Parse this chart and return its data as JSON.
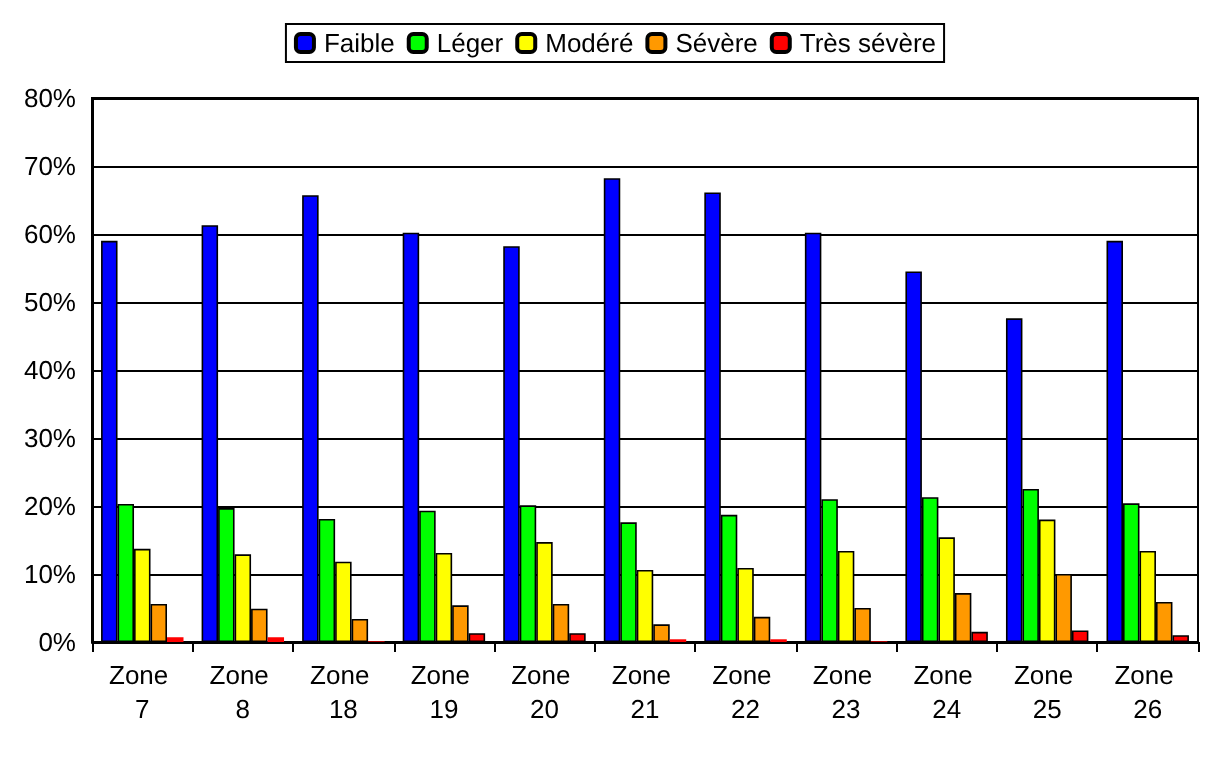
{
  "chart_data": {
    "type": "bar",
    "categories": [
      "Zone 7",
      "Zone 8",
      "Zone 18",
      "Zone 19",
      "Zone 20",
      "Zone 21",
      "Zone 22",
      "Zone 23",
      "Zone 24",
      "Zone 25",
      "Zone 26"
    ],
    "series": [
      {
        "name": "Faible",
        "color": "#0000ff",
        "values": [
          59,
          61.3,
          65.7,
          60.2,
          58.2,
          68.2,
          66.1,
          60.2,
          54.5,
          47.6,
          59
        ]
      },
      {
        "name": "Léger",
        "color": "#00ff00",
        "values": [
          20.3,
          19.7,
          18.1,
          19.3,
          20.1,
          17.6,
          18.7,
          21.0,
          21.3,
          22.5,
          20.4
        ]
      },
      {
        "name": "Modéré",
        "color": "#ffff00",
        "values": [
          13.7,
          12.9,
          11.8,
          13.1,
          14.7,
          10.6,
          10.9,
          13.4,
          15.4,
          18.0,
          13.4
        ]
      },
      {
        "name": "Sévère",
        "color": "#ff9900",
        "values": [
          5.6,
          4.9,
          3.4,
          5.4,
          5.6,
          2.6,
          3.7,
          5.0,
          7.2,
          10.0,
          5.9
        ]
      },
      {
        "name": "Très sévère",
        "color": "#ff0000",
        "values": [
          0.7,
          0.7,
          0.1,
          1.3,
          1.3,
          0.4,
          0.4,
          0.1,
          1.5,
          1.7,
          1.0
        ]
      }
    ],
    "ylim": [
      0,
      80
    ],
    "yticks": [
      {
        "value": 0,
        "label": "0%"
      },
      {
        "value": 10,
        "label": "10%"
      },
      {
        "value": 20,
        "label": "20%"
      },
      {
        "value": 30,
        "label": "30%"
      },
      {
        "value": 40,
        "label": "40%"
      },
      {
        "value": 50,
        "label": "50%"
      },
      {
        "value": 60,
        "label": "60%"
      },
      {
        "value": 70,
        "label": "70%"
      },
      {
        "value": 80,
        "label": "80%"
      }
    ],
    "grid": "y",
    "legend": "top"
  }
}
